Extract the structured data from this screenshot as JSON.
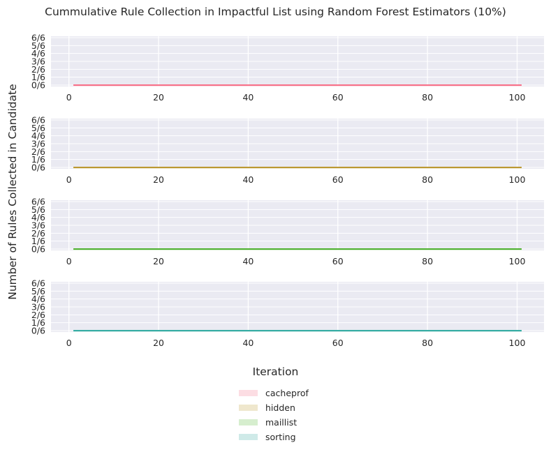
{
  "chart_data": [
    {
      "type": "line",
      "name": "cacheprof",
      "x": [
        1,
        101
      ],
      "values": [
        0,
        0
      ],
      "color": "#f77189",
      "xlim": [
        -4,
        106
      ],
      "ylim": [
        0,
        6
      ],
      "xticks": [
        "0",
        "20",
        "40",
        "60",
        "80",
        "100"
      ],
      "yticks": [
        "0/6",
        "1/6",
        "2/6",
        "3/6",
        "4/6",
        "5/6",
        "6/6"
      ]
    },
    {
      "type": "line",
      "name": "hidden",
      "x": [
        1,
        101
      ],
      "values": [
        0,
        0
      ],
      "color": "#bb9832",
      "xlim": [
        -4,
        106
      ],
      "ylim": [
        0,
        6
      ],
      "xticks": [
        "0",
        "20",
        "40",
        "60",
        "80",
        "100"
      ],
      "yticks": [
        "0/6",
        "1/6",
        "2/6",
        "3/6",
        "4/6",
        "5/6",
        "6/6"
      ]
    },
    {
      "type": "line",
      "name": "maillist",
      "x": [
        1,
        101
      ],
      "values": [
        0,
        0
      ],
      "color": "#50b131",
      "xlim": [
        -4,
        106
      ],
      "ylim": [
        0,
        6
      ],
      "xticks": [
        "0",
        "20",
        "40",
        "60",
        "80",
        "100"
      ],
      "yticks": [
        "0/6",
        "1/6",
        "2/6",
        "3/6",
        "4/6",
        "5/6",
        "6/6"
      ]
    },
    {
      "type": "line",
      "name": "sorting",
      "x": [
        1,
        101
      ],
      "values": [
        0,
        0
      ],
      "color": "#36ada4",
      "xlim": [
        -4,
        106
      ],
      "ylim": [
        0,
        6
      ],
      "xticks": [
        "0",
        "20",
        "40",
        "60",
        "80",
        "100"
      ],
      "yticks": [
        "0/6",
        "1/6",
        "2/6",
        "3/6",
        "4/6",
        "5/6",
        "6/6"
      ]
    }
  ],
  "title": "Cummulative Rule Collection in Impactful List using Random Forest Estimators (10%)",
  "xlabel": "Iteration",
  "ylabel": "Number of Rules Collected in Candidate",
  "legend": [
    {
      "label": "cacheprof",
      "color": "#fcdde3"
    },
    {
      "label": "hidden",
      "color": "#efe7cd"
    },
    {
      "label": "maillist",
      "color": "#d6eece"
    },
    {
      "label": "sorting",
      "color": "#cfeae8"
    }
  ]
}
